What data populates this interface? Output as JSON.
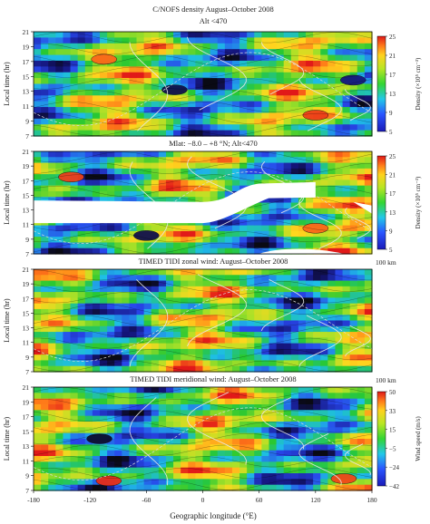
{
  "figure": {
    "x_axis_label": "Geographic longitude (°E)",
    "x_ticks": [
      "-180",
      "-120",
      "-60",
      "0",
      "60",
      "120",
      "180"
    ]
  },
  "chart_data": [
    {
      "type": "heatmap",
      "title": "C/NOFS density August–October 2008",
      "subtitle": "Alt <470",
      "ylabel": "Local time (hr)",
      "xlim": [
        -180,
        180
      ],
      "ylim": [
        7,
        21
      ],
      "y_ticks": [
        "7",
        "9",
        "11",
        "13",
        "15",
        "17",
        "19",
        "21"
      ],
      "colorbar": {
        "label": "Density (×10⁵ cm⁻³)",
        "ticks": [
          "5",
          "9",
          "13",
          "17",
          "21",
          "25"
        ],
        "range": [
          3,
          25
        ]
      },
      "mask": false,
      "field_seed": 11,
      "data_summary": [
        {
          "lon": -105,
          "lt": 17.3,
          "value": 23
        },
        {
          "lon": 120,
          "lt": 9.8,
          "value": 24
        },
        {
          "lon": -30,
          "lt": 13.2,
          "value": 4
        },
        {
          "lon": 160,
          "lt": 14.5,
          "value": 5
        }
      ]
    },
    {
      "type": "heatmap",
      "title": "Mlat: −8.0 – +8 °N; Alt<470",
      "ylabel": "Local time (hr)",
      "xlim": [
        -180,
        180
      ],
      "ylim": [
        7,
        21
      ],
      "y_ticks": [
        "7",
        "9",
        "11",
        "13",
        "15",
        "17",
        "19",
        "21"
      ],
      "colorbar": {
        "label": "Density (×10⁵ cm⁻³)",
        "ticks": [
          "5",
          "9",
          "13",
          "17",
          "21",
          "25"
        ],
        "range": [
          3,
          25
        ]
      },
      "mask": true,
      "field_seed": 23,
      "data_summary": [
        {
          "lon": -140,
          "lt": 17.5,
          "value": 24
        },
        {
          "lon": 120,
          "lt": 10.5,
          "value": 23
        },
        {
          "lon": -60,
          "lt": 9.5,
          "value": 4
        }
      ]
    },
    {
      "type": "heatmap",
      "title": "TIMED TIDI zonal wind: August–October 2008",
      "altitude_label": "100 km",
      "ylabel": "Local time (hr)",
      "xlim": [
        -180,
        180
      ],
      "ylim": [
        7,
        21
      ],
      "y_ticks": [
        "7",
        "9",
        "11",
        "13",
        "15",
        "17",
        "19",
        "21"
      ],
      "colorbar": null,
      "mask": false,
      "field_seed": 37,
      "data_summary": []
    },
    {
      "type": "heatmap",
      "title": "TIMED TIDI meridional wind: August–October 2008",
      "altitude_label": "100 km",
      "ylabel": "Local time (hr)",
      "xlim": [
        -180,
        180
      ],
      "ylim": [
        7,
        21
      ],
      "y_ticks": [
        "7",
        "9",
        "11",
        "13",
        "15",
        "17",
        "19",
        "21"
      ],
      "colorbar": {
        "label": "Wind speed (m/s)",
        "ticks": [
          "50",
          "33",
          "15",
          "−5",
          "−24",
          "−42"
        ],
        "range": [
          -42,
          50
        ]
      },
      "mask": false,
      "field_seed": 53,
      "data_summary": [
        {
          "lon": -100,
          "lt": 8.3,
          "value": 48
        },
        {
          "lon": 150,
          "lt": 8.6,
          "value": 45
        },
        {
          "lon": -110,
          "lt": 14,
          "value": -40
        }
      ]
    }
  ]
}
